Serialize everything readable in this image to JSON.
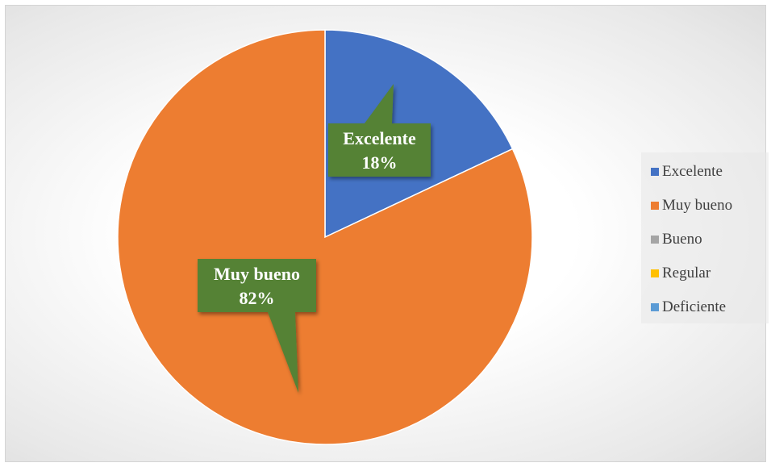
{
  "chart_data": {
    "type": "pie",
    "categories": [
      "Excelente",
      "Muy bueno",
      "Bueno",
      "Regular",
      "Deficiente"
    ],
    "values": [
      18,
      82,
      0,
      0,
      0
    ],
    "colors": [
      "#4472C4",
      "#ED7D31",
      "#A5A5A5",
      "#FFC000",
      "#5B9BD5"
    ],
    "data_labels": [
      {
        "category": "Excelente",
        "percent": "18%"
      },
      {
        "category": "Muy bueno",
        "percent": "82%"
      }
    ],
    "label_color": "#548235",
    "legend_position": "right"
  }
}
